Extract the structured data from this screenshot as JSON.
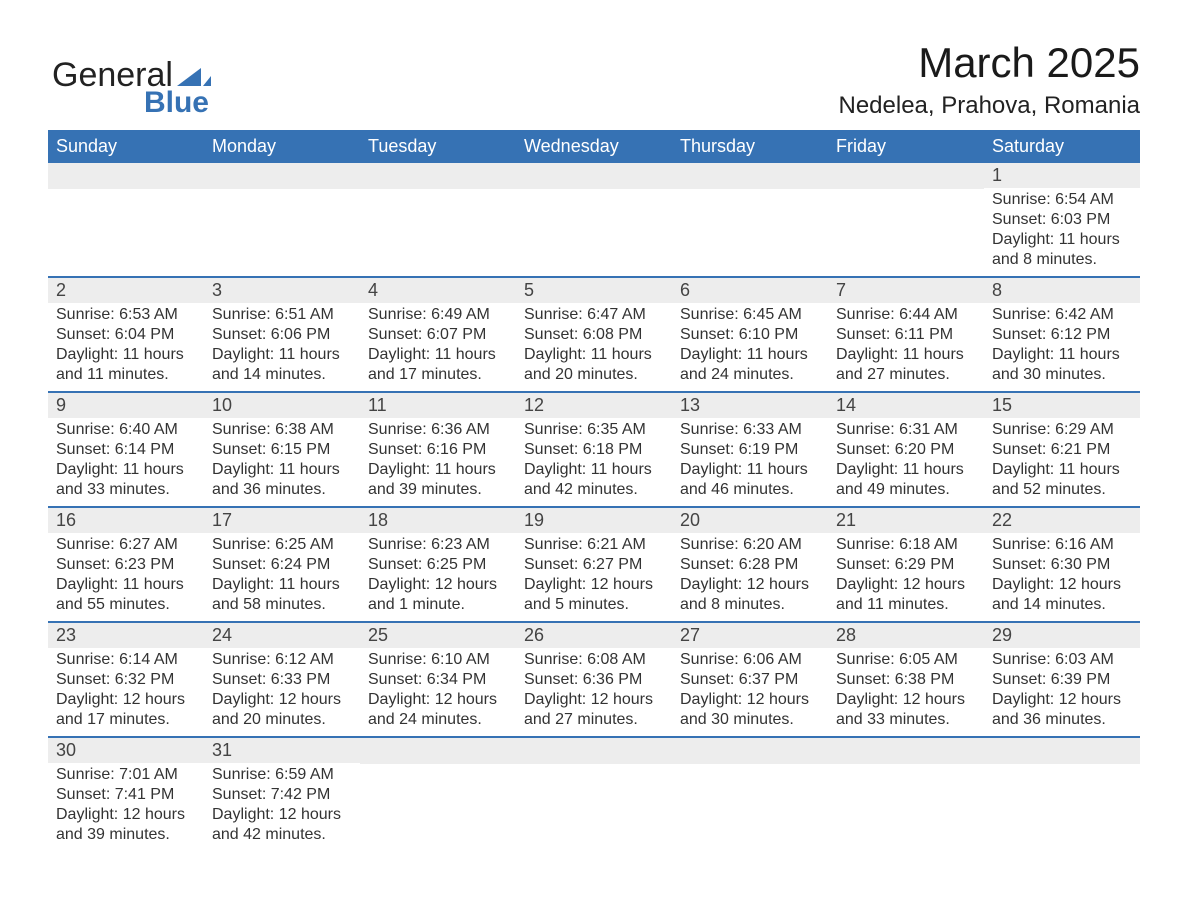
{
  "brand": {
    "line1": "General",
    "line2": "Blue"
  },
  "title": "March 2025",
  "location": "Nedelea, Prahova, Romania",
  "colors": {
    "header_bg": "#3672b4",
    "header_text": "#ffffff",
    "daynum_bg": "#ededed",
    "row_border": "#3672b4",
    "body_text": "#333333"
  },
  "day_headers": [
    "Sunday",
    "Monday",
    "Tuesday",
    "Wednesday",
    "Thursday",
    "Friday",
    "Saturday"
  ],
  "weeks": [
    [
      null,
      null,
      null,
      null,
      null,
      null,
      {
        "n": "1",
        "sunrise": "Sunrise: 6:54 AM",
        "sunset": "Sunset: 6:03 PM",
        "day1": "Daylight: 11 hours",
        "day2": "and 8 minutes."
      }
    ],
    [
      {
        "n": "2",
        "sunrise": "Sunrise: 6:53 AM",
        "sunset": "Sunset: 6:04 PM",
        "day1": "Daylight: 11 hours",
        "day2": "and 11 minutes."
      },
      {
        "n": "3",
        "sunrise": "Sunrise: 6:51 AM",
        "sunset": "Sunset: 6:06 PM",
        "day1": "Daylight: 11 hours",
        "day2": "and 14 minutes."
      },
      {
        "n": "4",
        "sunrise": "Sunrise: 6:49 AM",
        "sunset": "Sunset: 6:07 PM",
        "day1": "Daylight: 11 hours",
        "day2": "and 17 minutes."
      },
      {
        "n": "5",
        "sunrise": "Sunrise: 6:47 AM",
        "sunset": "Sunset: 6:08 PM",
        "day1": "Daylight: 11 hours",
        "day2": "and 20 minutes."
      },
      {
        "n": "6",
        "sunrise": "Sunrise: 6:45 AM",
        "sunset": "Sunset: 6:10 PM",
        "day1": "Daylight: 11 hours",
        "day2": "and 24 minutes."
      },
      {
        "n": "7",
        "sunrise": "Sunrise: 6:44 AM",
        "sunset": "Sunset: 6:11 PM",
        "day1": "Daylight: 11 hours",
        "day2": "and 27 minutes."
      },
      {
        "n": "8",
        "sunrise": "Sunrise: 6:42 AM",
        "sunset": "Sunset: 6:12 PM",
        "day1": "Daylight: 11 hours",
        "day2": "and 30 minutes."
      }
    ],
    [
      {
        "n": "9",
        "sunrise": "Sunrise: 6:40 AM",
        "sunset": "Sunset: 6:14 PM",
        "day1": "Daylight: 11 hours",
        "day2": "and 33 minutes."
      },
      {
        "n": "10",
        "sunrise": "Sunrise: 6:38 AM",
        "sunset": "Sunset: 6:15 PM",
        "day1": "Daylight: 11 hours",
        "day2": "and 36 minutes."
      },
      {
        "n": "11",
        "sunrise": "Sunrise: 6:36 AM",
        "sunset": "Sunset: 6:16 PM",
        "day1": "Daylight: 11 hours",
        "day2": "and 39 minutes."
      },
      {
        "n": "12",
        "sunrise": "Sunrise: 6:35 AM",
        "sunset": "Sunset: 6:18 PM",
        "day1": "Daylight: 11 hours",
        "day2": "and 42 minutes."
      },
      {
        "n": "13",
        "sunrise": "Sunrise: 6:33 AM",
        "sunset": "Sunset: 6:19 PM",
        "day1": "Daylight: 11 hours",
        "day2": "and 46 minutes."
      },
      {
        "n": "14",
        "sunrise": "Sunrise: 6:31 AM",
        "sunset": "Sunset: 6:20 PM",
        "day1": "Daylight: 11 hours",
        "day2": "and 49 minutes."
      },
      {
        "n": "15",
        "sunrise": "Sunrise: 6:29 AM",
        "sunset": "Sunset: 6:21 PM",
        "day1": "Daylight: 11 hours",
        "day2": "and 52 minutes."
      }
    ],
    [
      {
        "n": "16",
        "sunrise": "Sunrise: 6:27 AM",
        "sunset": "Sunset: 6:23 PM",
        "day1": "Daylight: 11 hours",
        "day2": "and 55 minutes."
      },
      {
        "n": "17",
        "sunrise": "Sunrise: 6:25 AM",
        "sunset": "Sunset: 6:24 PM",
        "day1": "Daylight: 11 hours",
        "day2": "and 58 minutes."
      },
      {
        "n": "18",
        "sunrise": "Sunrise: 6:23 AM",
        "sunset": "Sunset: 6:25 PM",
        "day1": "Daylight: 12 hours",
        "day2": "and 1 minute."
      },
      {
        "n": "19",
        "sunrise": "Sunrise: 6:21 AM",
        "sunset": "Sunset: 6:27 PM",
        "day1": "Daylight: 12 hours",
        "day2": "and 5 minutes."
      },
      {
        "n": "20",
        "sunrise": "Sunrise: 6:20 AM",
        "sunset": "Sunset: 6:28 PM",
        "day1": "Daylight: 12 hours",
        "day2": "and 8 minutes."
      },
      {
        "n": "21",
        "sunrise": "Sunrise: 6:18 AM",
        "sunset": "Sunset: 6:29 PM",
        "day1": "Daylight: 12 hours",
        "day2": "and 11 minutes."
      },
      {
        "n": "22",
        "sunrise": "Sunrise: 6:16 AM",
        "sunset": "Sunset: 6:30 PM",
        "day1": "Daylight: 12 hours",
        "day2": "and 14 minutes."
      }
    ],
    [
      {
        "n": "23",
        "sunrise": "Sunrise: 6:14 AM",
        "sunset": "Sunset: 6:32 PM",
        "day1": "Daylight: 12 hours",
        "day2": "and 17 minutes."
      },
      {
        "n": "24",
        "sunrise": "Sunrise: 6:12 AM",
        "sunset": "Sunset: 6:33 PM",
        "day1": "Daylight: 12 hours",
        "day2": "and 20 minutes."
      },
      {
        "n": "25",
        "sunrise": "Sunrise: 6:10 AM",
        "sunset": "Sunset: 6:34 PM",
        "day1": "Daylight: 12 hours",
        "day2": "and 24 minutes."
      },
      {
        "n": "26",
        "sunrise": "Sunrise: 6:08 AM",
        "sunset": "Sunset: 6:36 PM",
        "day1": "Daylight: 12 hours",
        "day2": "and 27 minutes."
      },
      {
        "n": "27",
        "sunrise": "Sunrise: 6:06 AM",
        "sunset": "Sunset: 6:37 PM",
        "day1": "Daylight: 12 hours",
        "day2": "and 30 minutes."
      },
      {
        "n": "28",
        "sunrise": "Sunrise: 6:05 AM",
        "sunset": "Sunset: 6:38 PM",
        "day1": "Daylight: 12 hours",
        "day2": "and 33 minutes."
      },
      {
        "n": "29",
        "sunrise": "Sunrise: 6:03 AM",
        "sunset": "Sunset: 6:39 PM",
        "day1": "Daylight: 12 hours",
        "day2": "and 36 minutes."
      }
    ],
    [
      {
        "n": "30",
        "sunrise": "Sunrise: 7:01 AM",
        "sunset": "Sunset: 7:41 PM",
        "day1": "Daylight: 12 hours",
        "day2": "and 39 minutes."
      },
      {
        "n": "31",
        "sunrise": "Sunrise: 6:59 AM",
        "sunset": "Sunset: 7:42 PM",
        "day1": "Daylight: 12 hours",
        "day2": "and 42 minutes."
      },
      null,
      null,
      null,
      null,
      null
    ]
  ]
}
